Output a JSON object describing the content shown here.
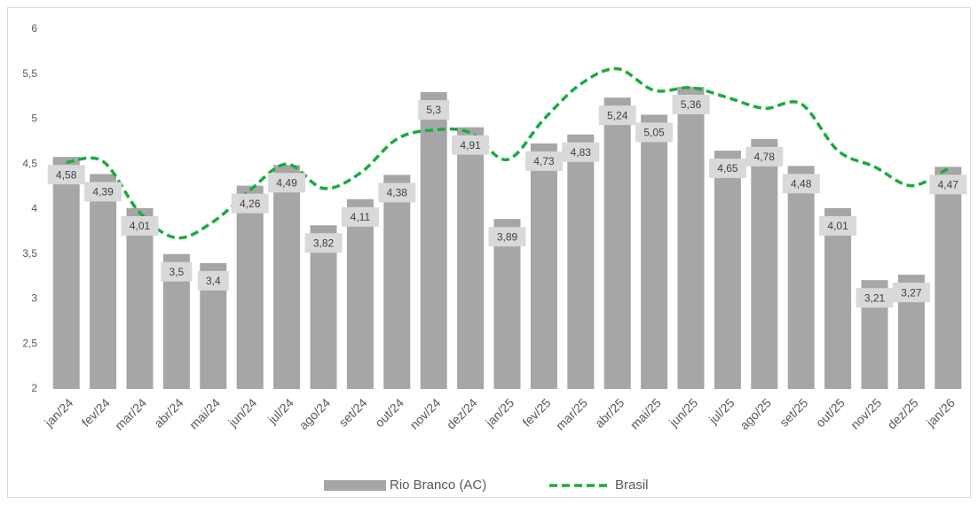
{
  "chart_data": {
    "type": "bar-line",
    "categories": [
      "jan/24",
      "fev/24",
      "mar/24",
      "abr/24",
      "mai/24",
      "jun/24",
      "jul/24",
      "ago/24",
      "set/24",
      "out/24",
      "nov/24",
      "dez/24",
      "jan/25",
      "fev/25",
      "mar/25",
      "abr/25",
      "mai/25",
      "jun/25",
      "jul/25",
      "ago/25",
      "set/25",
      "out/25",
      "nov/25",
      "dez/25",
      "jan/26"
    ],
    "series": [
      {
        "name": "Rio Branco (AC)",
        "type": "bar",
        "color": "#a6a6a6",
        "values": [
          4.58,
          4.39,
          4.01,
          3.5,
          3.4,
          4.26,
          4.49,
          3.82,
          4.11,
          4.38,
          5.3,
          4.91,
          3.89,
          4.73,
          4.83,
          5.24,
          5.05,
          5.36,
          4.65,
          4.78,
          4.48,
          4.01,
          3.21,
          3.27,
          4.47
        ],
        "value_labels": [
          "4,58",
          "4,39",
          "4,01",
          "3,5",
          "3,4",
          "4,26",
          "4,49",
          "3,82",
          "4,11",
          "4,38",
          "5,3",
          "4,91",
          "3,89",
          "4,73",
          "4,83",
          "5,24",
          "5,05",
          "5,36",
          "4,65",
          "4,78",
          "4,48",
          "4,01",
          "3,21",
          "3,27",
          "4,47"
        ]
      },
      {
        "name": "Brasil",
        "type": "line",
        "color": "#1aab3f",
        "values": [
          4.52,
          4.53,
          3.96,
          3.68,
          3.86,
          4.21,
          4.5,
          4.23,
          4.4,
          4.78,
          4.88,
          4.85,
          4.55,
          5.0,
          5.39,
          5.56,
          5.32,
          5.35,
          5.24,
          5.12,
          5.17,
          4.65,
          4.47,
          4.26,
          4.45
        ]
      }
    ],
    "ylim": [
      2,
      6
    ],
    "yticks": [
      2,
      {
        "value": 2.5,
        "label": "2,5"
      },
      3,
      {
        "value": 3.5,
        "label": "3,5"
      },
      4,
      {
        "value": 4.5,
        "label": "4,5"
      },
      5,
      {
        "value": 5.5,
        "label": "5,5"
      },
      6
    ],
    "legend": "bottom"
  }
}
